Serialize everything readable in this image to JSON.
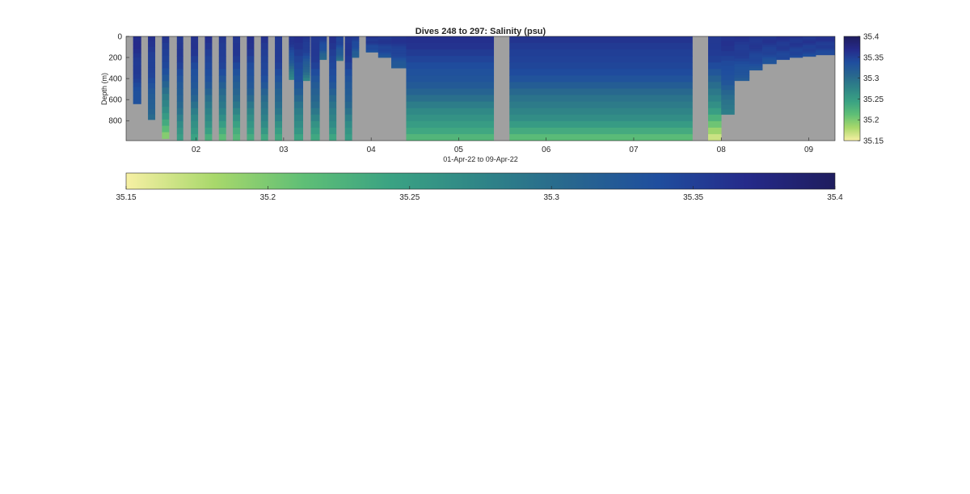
{
  "chart_data": {
    "type": "heatmap",
    "title": "Dives 248 to 297: Salinity (psu)",
    "xlabel": "01-Apr-22 to 09-Apr-22",
    "ylabel": "Depth (m)",
    "x_range_days": [
      1.2,
      9.3
    ],
    "x_ticks": [
      {
        "value": 2,
        "label": "02"
      },
      {
        "value": 3,
        "label": "03"
      },
      {
        "value": 4,
        "label": "04"
      },
      {
        "value": 5,
        "label": "05"
      },
      {
        "value": 6,
        "label": "06"
      },
      {
        "value": 7,
        "label": "07"
      },
      {
        "value": 8,
        "label": "08"
      },
      {
        "value": 9,
        "label": "09"
      }
    ],
    "y_range": [
      0,
      990
    ],
    "y_reversed": true,
    "y_ticks": [
      {
        "value": 0,
        "label": "0"
      },
      {
        "value": 200,
        "label": "200"
      },
      {
        "value": 400,
        "label": "400"
      },
      {
        "value": 600,
        "label": "600"
      },
      {
        "value": 800,
        "label": "800"
      }
    ],
    "color_range": [
      35.15,
      35.4
    ],
    "colormap": [
      "#f7f0a4",
      "#a8d86b",
      "#5fbf76",
      "#3aa283",
      "#2f8587",
      "#28678e",
      "#1f4e9e",
      "#252a8a",
      "#1f1d5e"
    ],
    "no_data_color": "#a0a0a0",
    "colorbar_ticks": [
      {
        "value": 35.15,
        "label": "35.15"
      },
      {
        "value": 35.2,
        "label": "35.2"
      },
      {
        "value": 35.25,
        "label": "35.25"
      },
      {
        "value": 35.3,
        "label": "35.3"
      },
      {
        "value": 35.35,
        "label": "35.35"
      },
      {
        "value": 35.4,
        "label": "35.4"
      }
    ],
    "profiles": [
      {
        "start": 1.28,
        "end": 1.37,
        "max_depth": 640,
        "surface": 35.365,
        "bottom": 35.33
      },
      {
        "start": 1.45,
        "end": 1.53,
        "max_depth": 790,
        "surface": 35.36,
        "bottom": 35.3
      },
      {
        "start": 1.61,
        "end": 1.69,
        "max_depth": 970,
        "surface": 35.36,
        "bottom": 35.2
      },
      {
        "start": 1.78,
        "end": 1.85,
        "max_depth": 990,
        "surface": 35.36,
        "bottom": 35.25
      },
      {
        "start": 1.94,
        "end": 2.02,
        "max_depth": 990,
        "surface": 35.36,
        "bottom": 35.24
      },
      {
        "start": 2.1,
        "end": 2.18,
        "max_depth": 990,
        "surface": 35.36,
        "bottom": 35.23
      },
      {
        "start": 2.26,
        "end": 2.34,
        "max_depth": 990,
        "surface": 35.36,
        "bottom": 35.22
      },
      {
        "start": 2.42,
        "end": 2.5,
        "max_depth": 990,
        "surface": 35.36,
        "bottom": 35.22
      },
      {
        "start": 2.58,
        "end": 2.66,
        "max_depth": 990,
        "surface": 35.36,
        "bottom": 35.23
      },
      {
        "start": 2.74,
        "end": 2.82,
        "max_depth": 990,
        "surface": 35.36,
        "bottom": 35.24
      },
      {
        "start": 2.9,
        "end": 2.98,
        "max_depth": 990,
        "surface": 35.36,
        "bottom": 35.24
      },
      {
        "start": 3.06,
        "end": 3.12,
        "max_depth": 410,
        "surface": 35.36,
        "bottom": 35.27
      },
      {
        "start": 3.12,
        "end": 3.22,
        "max_depth": 990,
        "surface": 35.36,
        "bottom": 35.24
      },
      {
        "start": 3.22,
        "end": 3.3,
        "max_depth": 420,
        "surface": 35.36,
        "bottom": 35.28
      },
      {
        "start": 3.31,
        "end": 3.41,
        "max_depth": 990,
        "surface": 35.36,
        "bottom": 35.24
      },
      {
        "start": 3.41,
        "end": 3.49,
        "max_depth": 220,
        "surface": 35.35,
        "bottom": 35.3
      },
      {
        "start": 3.52,
        "end": 3.6,
        "max_depth": 990,
        "surface": 35.36,
        "bottom": 35.24
      },
      {
        "start": 3.6,
        "end": 3.68,
        "max_depth": 230,
        "surface": 35.35,
        "bottom": 35.3
      },
      {
        "start": 3.7,
        "end": 3.78,
        "max_depth": 990,
        "surface": 35.36,
        "bottom": 35.25
      },
      {
        "start": 3.78,
        "end": 3.86,
        "max_depth": 200,
        "surface": 35.35,
        "bottom": 35.31
      },
      {
        "start": 3.94,
        "end": 4.08,
        "max_depth": 150,
        "surface": 35.36,
        "bottom": 35.33
      },
      {
        "start": 4.08,
        "end": 4.23,
        "max_depth": 200,
        "surface": 35.36,
        "bottom": 35.33
      },
      {
        "start": 4.23,
        "end": 4.4,
        "max_depth": 300,
        "surface": 35.36,
        "bottom": 35.32
      },
      {
        "start": 4.4,
        "end": 5.4,
        "max_depth": 990,
        "surface": 35.36,
        "bottom": 35.22
      },
      {
        "start": 5.58,
        "end": 7.67,
        "max_depth": 990,
        "surface": 35.36,
        "bottom": 35.22
      },
      {
        "start": 7.85,
        "end": 8.0,
        "max_depth": 990,
        "surface": 35.36,
        "bottom": 35.17
      },
      {
        "start": 8.0,
        "end": 8.15,
        "max_depth": 740,
        "surface": 35.36,
        "bottom": 35.28
      },
      {
        "start": 8.15,
        "end": 8.32,
        "max_depth": 420,
        "surface": 35.36,
        "bottom": 35.32
      },
      {
        "start": 8.32,
        "end": 8.47,
        "max_depth": 320,
        "surface": 35.36,
        "bottom": 35.33
      },
      {
        "start": 8.47,
        "end": 8.63,
        "max_depth": 260,
        "surface": 35.36,
        "bottom": 35.33
      },
      {
        "start": 8.63,
        "end": 8.78,
        "max_depth": 220,
        "surface": 35.36,
        "bottom": 35.34
      },
      {
        "start": 8.78,
        "end": 8.93,
        "max_depth": 200,
        "surface": 35.36,
        "bottom": 35.34
      },
      {
        "start": 8.93,
        "end": 9.08,
        "max_depth": 190,
        "surface": 35.36,
        "bottom": 35.34
      },
      {
        "start": 9.08,
        "end": 9.3,
        "max_depth": 175,
        "surface": 35.36,
        "bottom": 35.34
      }
    ]
  }
}
